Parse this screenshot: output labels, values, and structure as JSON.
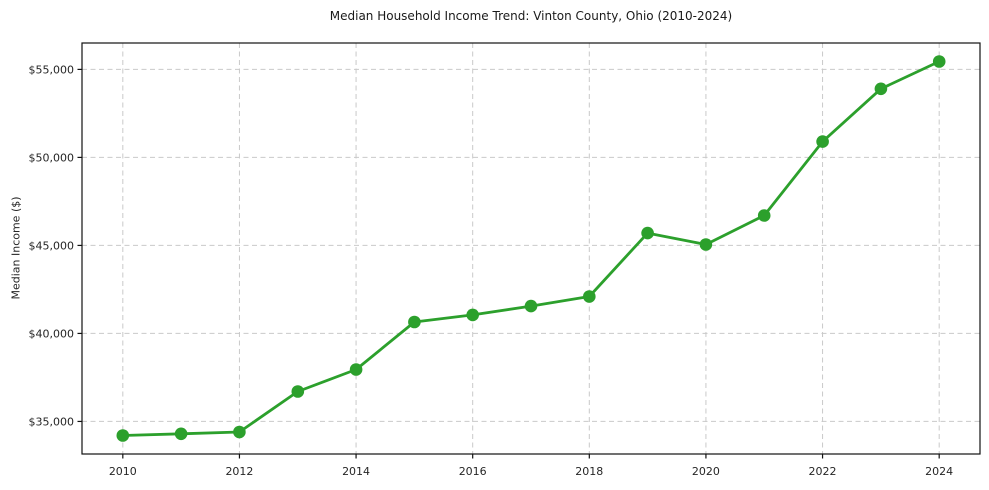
{
  "figure": {
    "background": "#ffffff"
  },
  "chart_data": {
    "type": "line",
    "title": "Median Household Income Trend: Vinton County, Ohio (2010-2024)",
    "xlabel": "",
    "ylabel": "Median Income ($)",
    "x": [
      2010,
      2011,
      2012,
      2013,
      2014,
      2015,
      2016,
      2017,
      2018,
      2019,
      2020,
      2021,
      2022,
      2023,
      2024
    ],
    "series": [
      {
        "name": "Median Household Income",
        "color": "#2ca02c",
        "marker": "circle",
        "values": [
          34200,
          34300,
          34400,
          36700,
          37950,
          40650,
          41050,
          41550,
          42100,
          45700,
          45050,
          46700,
          50900,
          53900,
          55450
        ]
      }
    ],
    "xlim": [
      2009.3,
      2024.7
    ],
    "ylim": [
      33150,
      56500
    ],
    "xticks": {
      "values": [
        2010,
        2012,
        2014,
        2016,
        2018,
        2020,
        2022,
        2024
      ],
      "labels": [
        "2010",
        "2012",
        "2014",
        "2016",
        "2018",
        "2020",
        "2022",
        "2024"
      ]
    },
    "yticks": {
      "values": [
        35000,
        40000,
        45000,
        50000,
        55000
      ],
      "labels": [
        "$35,000",
        "$40,000",
        "$45,000",
        "$50,000",
        "$55,000"
      ]
    },
    "grid": {
      "on": true,
      "style": "dashed",
      "color": "#c9c9c9"
    },
    "legend": "none"
  },
  "colors": {
    "line": "#2ca02c",
    "grid": "#c9c9c9",
    "axis_frame": "#111111",
    "tick_text": "#262626",
    "title_text": "#1a1a1a"
  }
}
